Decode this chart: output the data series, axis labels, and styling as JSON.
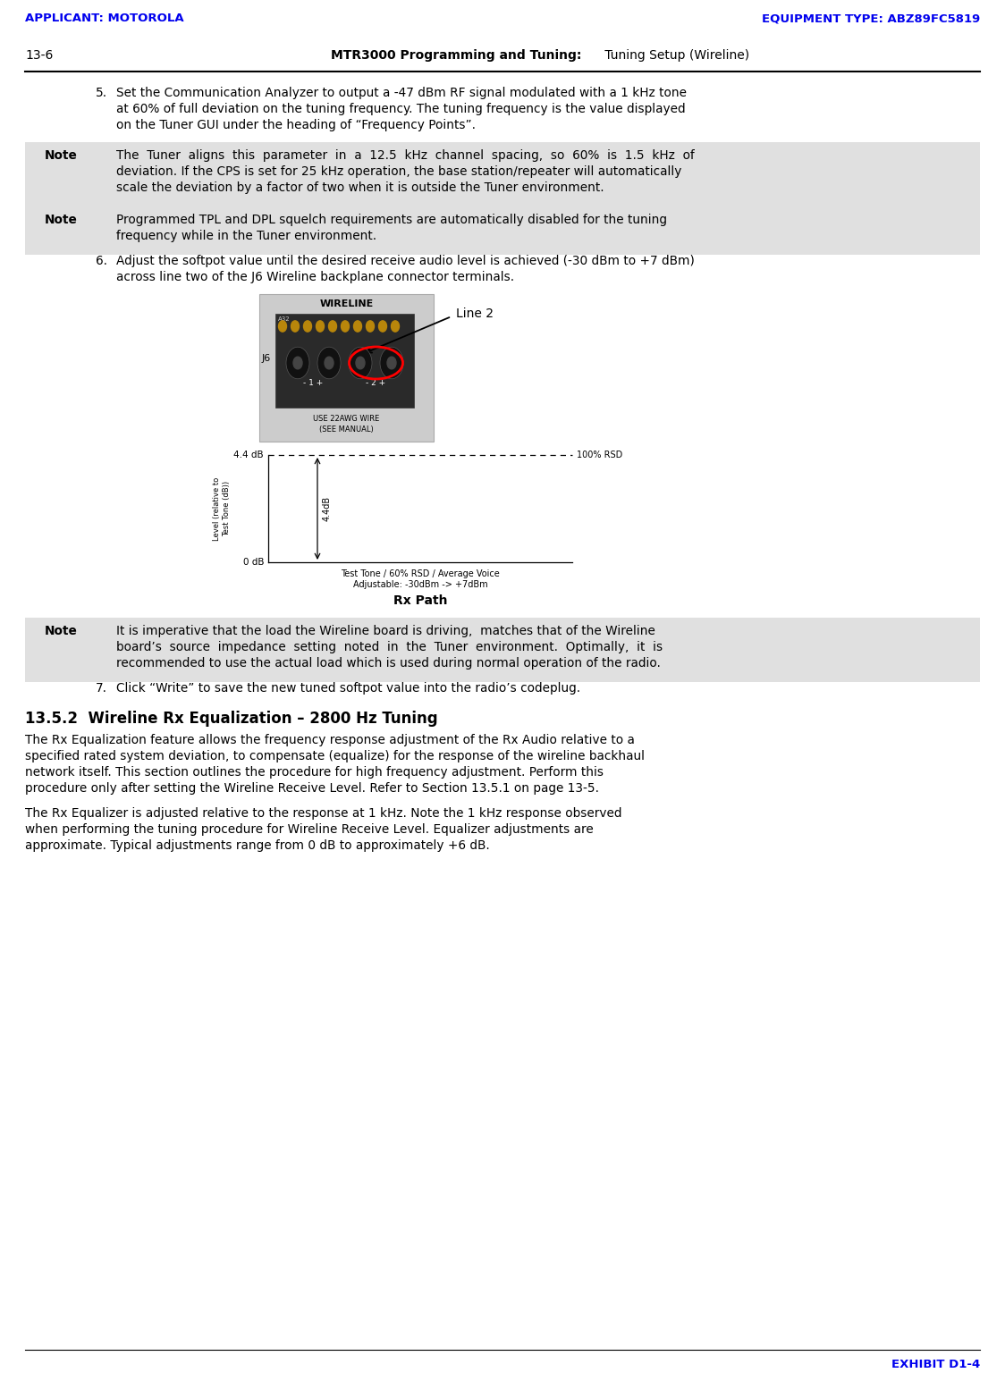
{
  "page_width": 11.24,
  "page_height": 15.36,
  "dpi": 100,
  "bg_color": "#ffffff",
  "header_left": "APPLICANT: MOTOROLA",
  "header_right": "EQUIPMENT TYPE: ABZ89FC5819",
  "header_color": "#0000ee",
  "subheader_left": "13-6",
  "subheader_center_bold": "MTR3000 Programming and Tuning:",
  "subheader_center_normal": " Tuning Setup (Wireline)",
  "footer_right": "EXHIBIT D1-4",
  "footer_color": "#0000ee",
  "note_bg": "#e0e0e0",
  "item5_lines": [
    "Set the Communication Analyzer to output a -47 dBm RF signal modulated with a 1 kHz tone",
    "at 60% of full deviation on the tuning frequency. The tuning frequency is the value displayed",
    "on the Tuner GUI under the heading of “Frequency Points”."
  ],
  "note1_label": "Note",
  "note1_lines": [
    "The  Tuner  aligns  this  parameter  in  a  12.5  kHz  channel  spacing,  so  60%  is  1.5  kHz  of",
    "deviation. If the CPS is set for 25 kHz operation, the base station/repeater will automatically",
    "scale the deviation by a factor of two when it is outside the Tuner environment."
  ],
  "note2_label": "Note",
  "note2_lines": [
    "Programmed TPL and DPL squelch requirements are automatically disabled for the tuning",
    "frequency while in the Tuner environment."
  ],
  "item6_lines": [
    "Adjust the softpot value until the desired receive audio level is achieved (-30 dBm to +7 dBm)",
    "across line two of the J6 Wireline backplane connector terminals."
  ],
  "line2_label": "Line 2",
  "note3_label": "Note",
  "note3_lines": [
    "It is imperative that the load the Wireline board is driving,  matches that of the Wireline",
    "board’s  source  impedance  setting  noted  in  the  Tuner  environment.  Optimally,  it  is",
    "recommended to use the actual load which is used during normal operation of the radio."
  ],
  "item7_text": "Click “Write” to save the new tuned softpot value into the radio’s codeplug.",
  "section_title": "13.5.2  Wireline Rx Equalization – 2800 Hz Tuning",
  "para1_lines": [
    "The Rx Equalization feature allows the frequency response adjustment of the Rx Audio relative to a",
    "specified rated system deviation, to compensate (equalize) for the response of the wireline backhaul",
    "network itself. This section outlines the procedure for high frequency adjustment. Perform this",
    "procedure only after setting the Wireline Receive Level. Refer to Section 13.5.1 on page 13-5."
  ],
  "para2_lines": [
    "The Rx Equalizer is adjusted relative to the response at 1 kHz. Note the 1 kHz response observed",
    "when performing the tuning procedure for Wireline Receive Level. Equalizer adjustments are",
    "approximate. Typical adjustments range from 0 dB to approximately +6 dB."
  ],
  "rx_path_label": "Rx Path",
  "graph_y_top_label": "4.4 dB",
  "graph_y_bot_label": "0 dB",
  "graph_rsd_label": "100% RSD",
  "graph_arrow_label": "4.4dB",
  "graph_x_label_line1": "Test Tone / 60% RSD / Average Voice",
  "graph_x_label_line2": "Adjustable: -30dBm -> +7dBm",
  "graph_yaxis_label_line1": "Level (relative to",
  "graph_yaxis_label_line2": "Test Tone (dB))"
}
